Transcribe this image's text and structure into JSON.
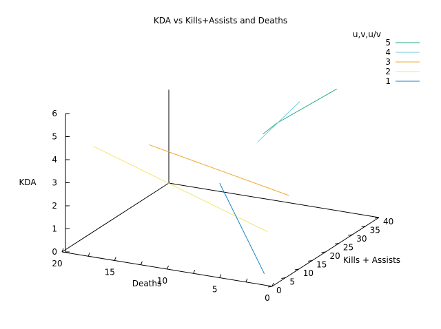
{
  "chart_data": {
    "type": "line",
    "projection": "3d",
    "title": "KDA vs Kills+Assists and Deaths",
    "xlabel": "Kills + Assists",
    "ylabel": "Deaths",
    "zlabel": "KDA",
    "xlim": [
      0,
      40
    ],
    "ylim": [
      0,
      20
    ],
    "zlim": [
      0,
      6
    ],
    "x_ticks": [
      "0",
      "5",
      "10",
      "15",
      "20",
      "25",
      "30",
      "35",
      "40"
    ],
    "y_ticks": [
      "20",
      "15",
      "10",
      "5",
      "0"
    ],
    "z_ticks": [
      "0",
      "1",
      "2",
      "3",
      "4",
      "5",
      "6"
    ],
    "legend_title": "u,v,u/v",
    "legend_position": "top-right",
    "series": [
      {
        "name": "5",
        "color": "#26a685",
        "points": [
          [
            36,
            3,
            5.65
          ],
          [
            33,
            8,
            4.0
          ],
          [
            32,
            9,
            3.55
          ]
        ]
      },
      {
        "name": "4",
        "color": "#6fcde0",
        "points": [
          [
            30,
            5,
            5.4
          ],
          [
            30,
            9,
            3.35
          ]
        ]
      },
      {
        "name": "3",
        "color": "#f0a830",
        "points": [
          [
            5,
            13,
            4.8
          ],
          [
            22,
            4,
            2.0
          ]
        ]
      },
      {
        "name": "2",
        "color": "#f5e46e",
        "points": [
          [
            0,
            17,
            4.8
          ],
          [
            10,
            3,
            1.4
          ]
        ]
      },
      {
        "name": "1",
        "color": "#1a84c6",
        "points": [
          [
            0,
            5,
            4.1
          ],
          [
            1,
            1,
            0.4
          ]
        ]
      }
    ]
  }
}
